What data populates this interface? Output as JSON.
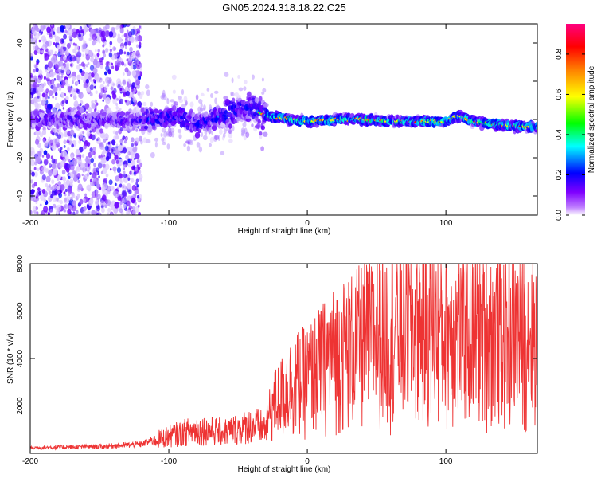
{
  "title": "GN05.2024.318.18.22.C25",
  "chart_data": [
    {
      "type": "heatmap",
      "xlabel": "Height of straight line (km)",
      "ylabel": "Frequency (Hz)",
      "xlim": [
        -200,
        166
      ],
      "ylim": [
        -50,
        50
      ],
      "x_ticks": [
        -200,
        -100,
        0,
        100
      ],
      "y_ticks": [
        -40,
        -20,
        0,
        20,
        40
      ],
      "colorbar": {
        "label": "Normalized spectral amplitude",
        "range": [
          0,
          0.95
        ],
        "ticks": [
          0.0,
          0.2,
          0.4,
          0.6,
          0.8
        ],
        "colors": [
          "#ffffff",
          "#7f00ff",
          "#0000ff",
          "#00ffff",
          "#00ff00",
          "#ffff00",
          "#ff7f00",
          "#ff0000",
          "#ff0080"
        ]
      },
      "ridge": [
        {
          "x": -120,
          "y": 0
        },
        {
          "x": -100,
          "y": 1
        },
        {
          "x": -90,
          "y": 2
        },
        {
          "x": -80,
          "y": -3
        },
        {
          "x": -70,
          "y": 0
        },
        {
          "x": -60,
          "y": 3
        },
        {
          "x": -50,
          "y": 6
        },
        {
          "x": -40,
          "y": 6
        },
        {
          "x": -30,
          "y": 2
        },
        {
          "x": -20,
          "y": 1
        },
        {
          "x": 0,
          "y": -1
        },
        {
          "x": 20,
          "y": 0
        },
        {
          "x": 40,
          "y": 0
        },
        {
          "x": 60,
          "y": -1
        },
        {
          "x": 80,
          "y": -1
        },
        {
          "x": 100,
          "y": -1
        },
        {
          "x": 110,
          "y": 2
        },
        {
          "x": 120,
          "y": -1
        },
        {
          "x": 140,
          "y": -3
        },
        {
          "x": 165,
          "y": -4
        }
      ]
    },
    {
      "type": "line",
      "xlabel": "Height of straight line (km)",
      "ylabel": "SNR (10 * v/v)",
      "xlim": [
        -200,
        166
      ],
      "ylim": [
        0,
        8000
      ],
      "x_ticks": [
        -200,
        -100,
        0,
        100
      ],
      "y_ticks": [
        2000,
        4000,
        6000,
        8000
      ],
      "color": "#ee3333",
      "envelope": [
        {
          "x": -200,
          "y": 250
        },
        {
          "x": -150,
          "y": 300
        },
        {
          "x": -120,
          "y": 400
        },
        {
          "x": -100,
          "y": 800
        },
        {
          "x": -80,
          "y": 1100
        },
        {
          "x": -60,
          "y": 1000
        },
        {
          "x": -40,
          "y": 1300
        },
        {
          "x": -30,
          "y": 1200
        },
        {
          "x": -25,
          "y": 2000
        },
        {
          "x": -10,
          "y": 3000
        },
        {
          "x": 0,
          "y": 3200
        },
        {
          "x": 20,
          "y": 4200
        },
        {
          "x": 50,
          "y": 5000
        },
        {
          "x": 80,
          "y": 5300
        },
        {
          "x": 110,
          "y": 5100
        },
        {
          "x": 140,
          "y": 5000
        },
        {
          "x": 166,
          "y": 5000
        }
      ]
    }
  ]
}
